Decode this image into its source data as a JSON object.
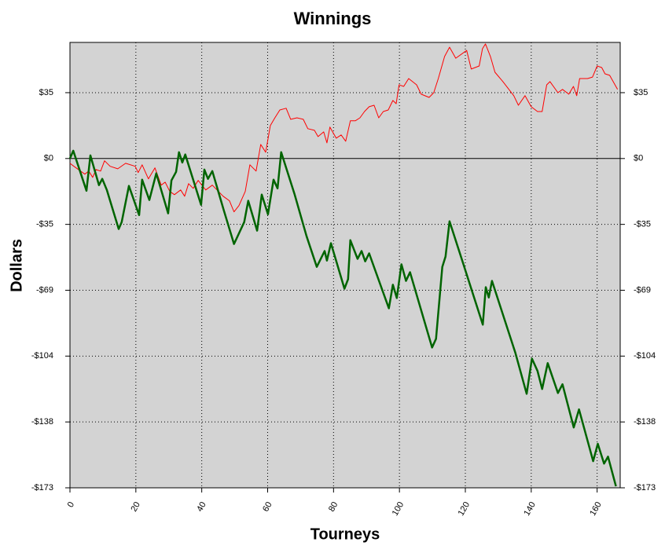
{
  "chart_data": {
    "type": "line",
    "title": "Winnings",
    "xlabel": "Tourneys",
    "ylabel": "Dollars",
    "xlim": [
      0,
      167
    ],
    "xticks": [
      0,
      20,
      40,
      60,
      80,
      100,
      120,
      140,
      160
    ],
    "ylim": [
      -173,
      61
    ],
    "yticks": [
      {
        "value": 34.6,
        "label": "$35"
      },
      {
        "value": 0,
        "label": "$0"
      },
      {
        "value": -34.6,
        "label": "-$35"
      },
      {
        "value": -69.2,
        "label": "-$69"
      },
      {
        "value": -103.8,
        "label": "-$104"
      },
      {
        "value": -138.4,
        "label": "-$138"
      },
      {
        "value": -173,
        "label": "-$173"
      }
    ],
    "grid": true,
    "series": [
      {
        "color": "#ff0000",
        "width": 1,
        "x": [
          0,
          1.2,
          4.5,
          5.7,
          6.9,
          7.9,
          9.3,
          10.5,
          12.2,
          14.5,
          16.9,
          19.8,
          20.7,
          21.9,
          23.8,
          25.8,
          27.7,
          28.9,
          30.3,
          31.7,
          33.6,
          34.8,
          36,
          37.4,
          38.9,
          41.2,
          43.2,
          46.5,
          48.4,
          49.8,
          51.3,
          53.2,
          54.6,
          56.5,
          57.9,
          59.4,
          60.8,
          62.2,
          63.7,
          65.6,
          67,
          68.9,
          70.8,
          72.2,
          74.2,
          75.3,
          77,
          78,
          78.9,
          80.8,
          82.3,
          83.7,
          85.1,
          86.6,
          88,
          89.4,
          90.8,
          92.3,
          93.7,
          95.1,
          96.6,
          98,
          99,
          99.9,
          101.3,
          102.8,
          105.2,
          106.6,
          109,
          110.4,
          111.8,
          113.7,
          115.2,
          117.1,
          120.4,
          121.8,
          124.2,
          125.2,
          126.1,
          127.6,
          129,
          131.4,
          134.7,
          136.1,
          138.1,
          140,
          141.9,
          143.3,
          144.7,
          145.7,
          148.1,
          149.5,
          151.4,
          152.8,
          153.8,
          154.7,
          157.1,
          158.6,
          160,
          161.4,
          162.4,
          163.8,
          166.2
        ],
        "values": [
          -2.5,
          -4.1,
          -8.2,
          -6.6,
          -9.9,
          -5.8,
          -6.6,
          -1.2,
          -4.1,
          -5.4,
          -2.5,
          -4.1,
          -7.4,
          -3.3,
          -10.7,
          -4.9,
          -14,
          -12.4,
          -17.3,
          -19,
          -16.5,
          -19.8,
          -13.2,
          -15.7,
          -11.5,
          -16.5,
          -14,
          -19.8,
          -22.2,
          -28,
          -24.7,
          -17.3,
          -3.3,
          -6.6,
          7.4,
          3.3,
          17.3,
          21.4,
          25.5,
          26.4,
          20.6,
          21.4,
          20.6,
          15.7,
          14.8,
          11.5,
          14,
          8.2,
          16.5,
          10.7,
          12.4,
          9.1,
          19.8,
          19.8,
          21.4,
          24.7,
          27.2,
          28,
          21.4,
          24.7,
          25.5,
          30.5,
          28.8,
          38.7,
          37.9,
          42,
          38.7,
          33.8,
          32.1,
          34.6,
          42,
          53.6,
          58.5,
          52.7,
          56.8,
          47,
          48.6,
          57.7,
          60.2,
          53.6,
          45.3,
          40.4,
          33,
          28,
          33,
          27.2,
          24.7,
          24.7,
          38.7,
          40.4,
          34.6,
          36.3,
          33.8,
          37.9,
          33,
          42,
          42,
          42.8,
          48.6,
          47.8,
          44.5,
          43.7,
          36.3
        ]
      },
      {
        "color": "#006400",
        "width": 2.5,
        "x": [
          0,
          1,
          5,
          6.2,
          8.8,
          9.8,
          11.2,
          14.8,
          15.7,
          17.9,
          21,
          21.9,
          24.1,
          26.2,
          29.8,
          30.8,
          32.2,
          33.1,
          34.1,
          35,
          39.8,
          40.8,
          41.9,
          43.2,
          46.7,
          49.8,
          52.9,
          54.1,
          56.8,
          58.2,
          60.1,
          61.8,
          63,
          64.1,
          68.2,
          71.8,
          74.9,
          77.3,
          78,
          79.2,
          83.3,
          84.4,
          85.1,
          87.3,
          88.5,
          89.6,
          90.8,
          92,
          96.8,
          98,
          99.2,
          100.6,
          102,
          103.2,
          109.9,
          111.1,
          113,
          114,
          115.2,
          119.5,
          125.3,
          126.2,
          127.1,
          128.1,
          135.2,
          138.6,
          140.2,
          141.9,
          143.3,
          145,
          148.1,
          149.5,
          152.9,
          154.5,
          158.8,
          160.2,
          162.1,
          163.3,
          165.7
        ],
        "values": [
          0,
          4.1,
          -16.9,
          1.6,
          -14,
          -10.7,
          -16.5,
          -37,
          -33.4,
          -14.4,
          -29.7,
          -11.1,
          -21.8,
          -7.8,
          -28.8,
          -11.5,
          -7,
          3.3,
          -2.1,
          2.1,
          -24.3,
          -5.8,
          -10.7,
          -6.6,
          -27.2,
          -44.9,
          -33.4,
          -22.2,
          -37.9,
          -19,
          -29.3,
          -11.1,
          -15.7,
          3.3,
          -19,
          -40.8,
          -56.9,
          -48.6,
          -53.6,
          -44.5,
          -68.4,
          -63.4,
          -42.9,
          -52.7,
          -48.6,
          -54,
          -49.8,
          -55.6,
          -78.7,
          -66.3,
          -73.3,
          -55.6,
          -64.3,
          -59.7,
          -99.3,
          -94.7,
          -56.9,
          -51.5,
          -33,
          -56,
          -87.3,
          -67.6,
          -73,
          -64.3,
          -102.2,
          -123.6,
          -105.1,
          -111.6,
          -121.1,
          -107.5,
          -123.2,
          -118.6,
          -141.3,
          -131.8,
          -159,
          -149.9,
          -160.3,
          -156.6,
          -172.2
        ]
      }
    ]
  }
}
